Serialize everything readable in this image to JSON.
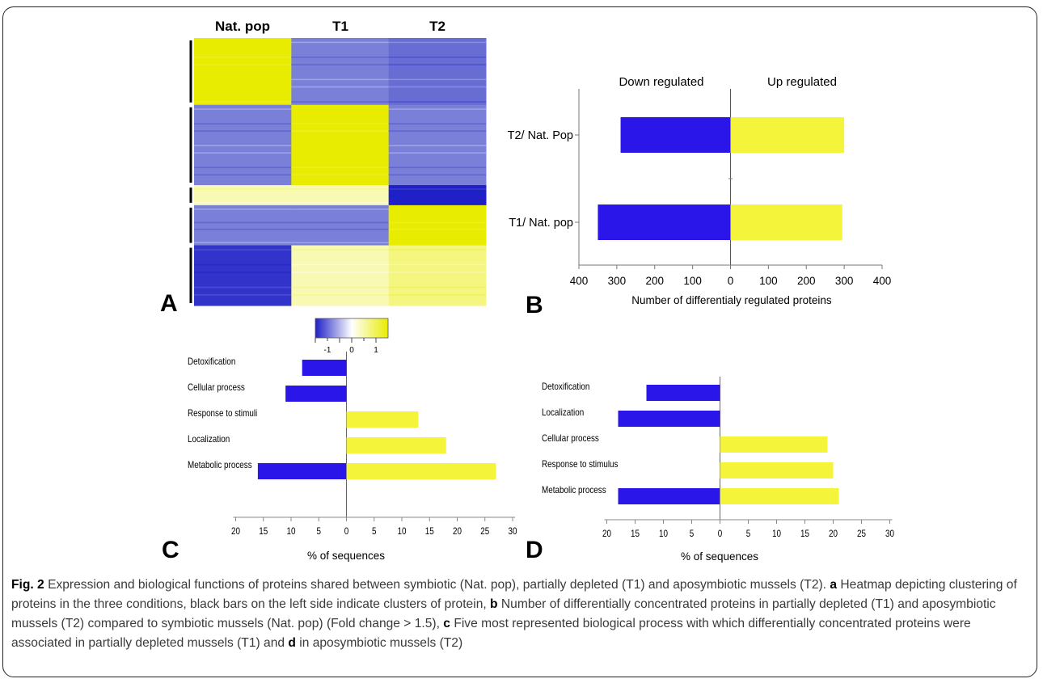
{
  "panel_letters": {
    "a": "A",
    "b": "B",
    "c": "C",
    "d": "D"
  },
  "colors": {
    "down": "#2a16e8",
    "up": "#f4f53a",
    "heat_low": "#1f20c6",
    "heat_mid_low": "#7a80d8",
    "heat_mid": "#ffffff",
    "heat_high": "#e8ec00"
  },
  "chart_data": [
    {
      "type": "heatmap",
      "columns": [
        "Nat. pop",
        "T1",
        "T2"
      ],
      "colorbar": {
        "ticks": [
          "-1",
          "0",
          "1"
        ],
        "range": [
          -1,
          1
        ]
      },
      "clusters": 5,
      "rows_by_cluster": [
        {
          "name": "",
          "values": [
            1,
            -0.5,
            -0.6
          ],
          "share": 0.25
        },
        {
          "name": "",
          "values": [
            -0.5,
            1,
            -0.5
          ],
          "share": 0.3
        },
        {
          "name": "",
          "values": [
            0.3,
            0.3,
            -1
          ],
          "share": 0.075
        },
        {
          "name": "",
          "values": [
            -0.5,
            -0.5,
            1
          ],
          "share": 0.15
        },
        {
          "name": "",
          "values": [
            -0.9,
            0.3,
            0.5
          ],
          "share": 0.225
        }
      ]
    },
    {
      "type": "bar",
      "orientation": "horizontal",
      "categories": [
        "T2/ Nat. Pop",
        "T1/ Nat. pop"
      ],
      "series": [
        {
          "name": "Down regulated",
          "values": [
            290,
            350
          ]
        },
        {
          "name": "Up regulated",
          "values": [
            300,
            295
          ]
        }
      ],
      "xlabel": "Number of differentialy regulated proteins",
      "xticks": [
        "400",
        "300",
        "200",
        "100",
        "0",
        "100",
        "200",
        "300",
        "400"
      ],
      "xlim": [
        -400,
        400
      ]
    },
    {
      "type": "bar",
      "orientation": "horizontal",
      "categories": [
        "Detoxification",
        "Cellular process",
        "Response to stimuli",
        "Localization",
        "Metabolic process"
      ],
      "series": [
        {
          "name": "down",
          "values": [
            8,
            11,
            0,
            0,
            16
          ]
        },
        {
          "name": "up",
          "values": [
            0,
            0,
            13,
            18,
            27
          ]
        }
      ],
      "xlabel": "% of sequences",
      "xticks": [
        "20",
        "15",
        "10",
        "5",
        "0",
        "5",
        "10",
        "15",
        "20",
        "25",
        "30"
      ],
      "xlim": [
        -20,
        30
      ]
    },
    {
      "type": "bar",
      "orientation": "horizontal",
      "categories": [
        "Detoxification",
        "Localization",
        "Cellular process",
        "Response to stimulus",
        "Metabolic process"
      ],
      "series": [
        {
          "name": "down",
          "values": [
            13,
            18,
            0,
            0,
            18
          ]
        },
        {
          "name": "up",
          "values": [
            0,
            0,
            19,
            20,
            21
          ]
        }
      ],
      "xlabel": "% of sequences",
      "xticks": [
        "20",
        "15",
        "10",
        "5",
        "0",
        "5",
        "10",
        "15",
        "20",
        "25",
        "30"
      ],
      "xlim": [
        -20,
        30
      ]
    }
  ],
  "caption": {
    "fig_label": "Fig. 2",
    "intro": " Expression and biological functions of proteins shared between symbiotic (Nat. pop), partially depleted (T1) and aposymbiotic mussels (T2). ",
    "a_label": "a",
    "a_text": " Heatmap depicting clustering of proteins in the three conditions, black bars on the left side indicate clusters of protein, ",
    "b_label": "b",
    "b_text": " Number of differentially concentrated proteins in partially depleted (T1) and aposymbiotic mussels (T2) compared to symbiotic mussels (Nat. pop) (Fold change > 1.5), ",
    "c_label": "c",
    "c_text": " Five most represented biological process with which differentially concentrated proteins were associated in partially depleted mussels (T1) and ",
    "d_label": "d",
    "d_text": " in aposymbiotic mussels (T2)"
  }
}
